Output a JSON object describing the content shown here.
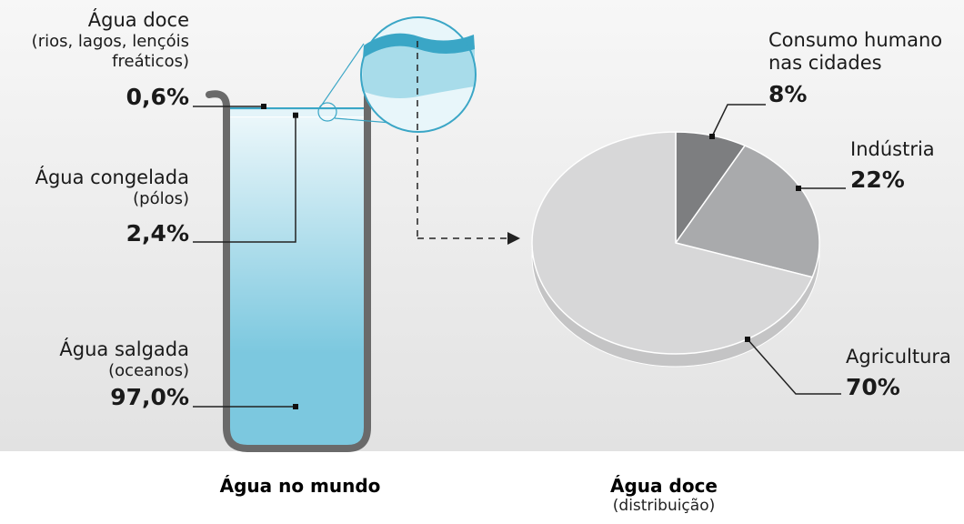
{
  "chart_data": [
    {
      "type": "column",
      "title": "Água no mundo",
      "categories": [
        "Água doce",
        "Água congelada",
        "Água salgada"
      ],
      "notes": [
        "(rios, lagos, lençóis freáticos)",
        "(pólos)",
        "(oceanos)"
      ],
      "values": [
        0.6,
        2.4,
        97.0
      ],
      "value_labels": [
        "0,6%",
        "2,4%",
        "97,0%"
      ],
      "colors": [
        "#3aa6c6",
        "#e4f4f9",
        "#7cc8df"
      ],
      "ylim": [
        0,
        100
      ]
    },
    {
      "type": "pie",
      "title": "Água doce",
      "subtitle": "(distribuição)",
      "categories": [
        "Consumo humano nas cidades",
        "Indústria",
        "Agricultura"
      ],
      "values": [
        8,
        22,
        70
      ],
      "value_labels": [
        "8%",
        "22%",
        "70%"
      ],
      "colors": [
        "#7d7e80",
        "#a9aaac",
        "#d7d7d8"
      ]
    }
  ]
}
